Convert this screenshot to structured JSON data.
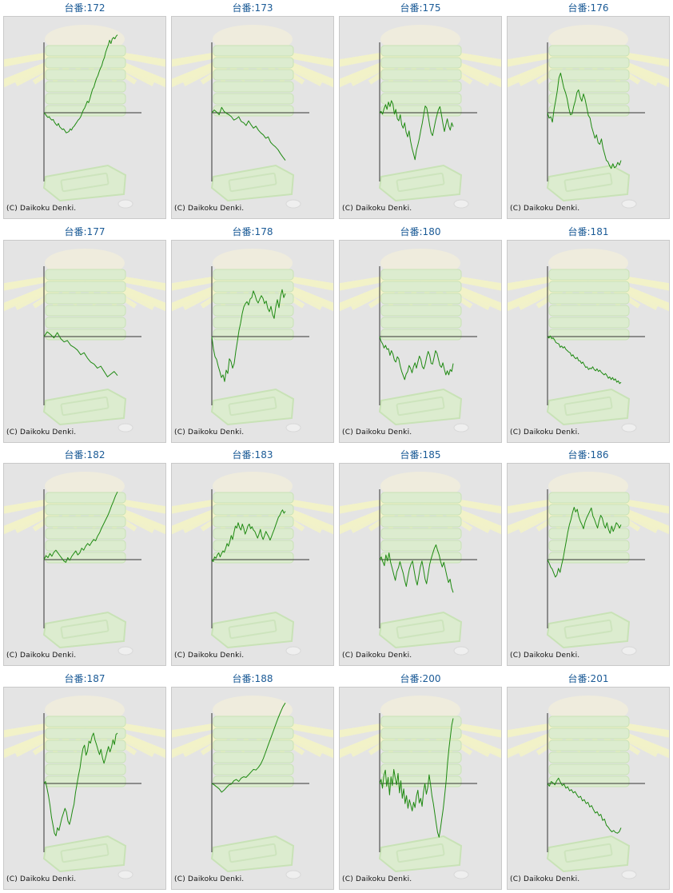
{
  "colors": {
    "title": "#1a5a96",
    "line": "#1f8a12",
    "axis": "#333333",
    "panel": "#e4e4e4"
  },
  "credit": "(C) Daikoku Denki.",
  "chart_data": [
    {
      "type": "line",
      "title": "台番:172",
      "values": [
        0,
        -2,
        -5,
        -7,
        -6,
        -9,
        -11,
        -10,
        -14,
        -17,
        -19,
        -16,
        -21,
        -23,
        -25,
        -24,
        -27,
        -30,
        -29,
        -28,
        -24,
        -26,
        -22,
        -20,
        -17,
        -14,
        -11,
        -9,
        -6,
        -1,
        4,
        7,
        12,
        17,
        15,
        21,
        28,
        35,
        38,
        45,
        51,
        55,
        61,
        66,
        70,
        77,
        82,
        90,
        96,
        101,
        108,
        103,
        110,
        112,
        110,
        114,
        116
      ]
    },
    {
      "type": "line",
      "title": "台番:173",
      "values": [
        0,
        4,
        1,
        -3,
        8,
        2,
        -1,
        -3,
        -6,
        -11,
        -9,
        -6,
        -13,
        -15,
        -19,
        -12,
        -18,
        -23,
        -20,
        -26,
        -30,
        -33,
        -38,
        -36,
        -44,
        -48,
        -51,
        -55,
        -61,
        -66,
        -71
      ]
    },
    {
      "type": "line",
      "title": "台番:175",
      "values": [
        0,
        2,
        -2,
        6,
        12,
        5,
        16,
        9,
        18,
        13,
        -2,
        5,
        -9,
        -12,
        -3,
        -18,
        -23,
        -15,
        -29,
        -36,
        -27,
        -42,
        -53,
        -61,
        -70,
        -56,
        -48,
        -38,
        -26,
        -15,
        -2,
        10,
        7,
        -5,
        -19,
        -30,
        -34,
        -23,
        -12,
        -3,
        5,
        9,
        -3,
        -16,
        -28,
        -18,
        -9,
        -20,
        -26,
        -15,
        -21
      ]
    },
    {
      "type": "line",
      "title": "台番:176",
      "values": [
        0,
        -8,
        -6,
        -14,
        5,
        18,
        33,
        52,
        59,
        48,
        37,
        30,
        21,
        7,
        -3,
        -2,
        9,
        18,
        30,
        34,
        23,
        17,
        28,
        20,
        8,
        -4,
        -8,
        -21,
        -29,
        -38,
        -33,
        -45,
        -47,
        -39,
        -53,
        -62,
        -71,
        -73,
        -79,
        -83,
        -76,
        -82,
        -80,
        -74,
        -78,
        -71
      ]
    },
    {
      "type": "line",
      "title": "台番:177",
      "values": [
        0,
        7,
        3,
        -2,
        6,
        -3,
        -8,
        -6,
        -13,
        -16,
        -20,
        -27,
        -24,
        -32,
        -38,
        -41,
        -47,
        -44,
        -52,
        -60,
        -56,
        -52,
        -58
      ]
    },
    {
      "type": "line",
      "title": "台番:178",
      "values": [
        0,
        -18,
        -30,
        -34,
        -44,
        -52,
        -61,
        -57,
        -67,
        -50,
        -55,
        -33,
        -37,
        -47,
        -40,
        -22,
        -7,
        9,
        20,
        34,
        44,
        49,
        52,
        47,
        56,
        58,
        68,
        62,
        54,
        50,
        56,
        61,
        57,
        49,
        53,
        42,
        37,
        45,
        33,
        27,
        44,
        55,
        43,
        60,
        70,
        58,
        64
      ]
    },
    {
      "type": "line",
      "title": "台番:180",
      "values": [
        0,
        -7,
        -11,
        -17,
        -13,
        -19,
        -18,
        -28,
        -21,
        -26,
        -35,
        -38,
        -30,
        -33,
        -44,
        -52,
        -58,
        -64,
        -56,
        -52,
        -43,
        -47,
        -54,
        -45,
        -39,
        -47,
        -38,
        -29,
        -34,
        -45,
        -48,
        -41,
        -30,
        -22,
        -28,
        -40,
        -41,
        -31,
        -21,
        -25,
        -34,
        -43,
        -46,
        -39,
        -49,
        -57,
        -51,
        -57,
        -49,
        -52,
        -40
      ]
    },
    {
      "type": "line",
      "title": "台番:181",
      "values": [
        0,
        -2,
        1,
        -3,
        -2,
        -5,
        -9,
        -10,
        -11,
        -16,
        -14,
        -17,
        -15,
        -19,
        -21,
        -23,
        -24,
        -29,
        -27,
        -31,
        -33,
        -31,
        -36,
        -36,
        -40,
        -38,
        -42,
        -46,
        -45,
        -49,
        -47,
        -48,
        -45,
        -49,
        -51,
        -48,
        -52,
        -50,
        -53,
        -55,
        -57,
        -55,
        -58,
        -62,
        -60,
        -64,
        -61,
        -65,
        -63,
        -68,
        -66,
        -70,
        -68
      ]
    },
    {
      "type": "line",
      "title": "台番:182",
      "values": [
        0,
        6,
        3,
        9,
        5,
        11,
        14,
        10,
        6,
        2,
        -2,
        -4,
        3,
        -1,
        5,
        9,
        13,
        7,
        10,
        17,
        14,
        20,
        24,
        21,
        26,
        30,
        28,
        35,
        40,
        47,
        53,
        59,
        65,
        72,
        80,
        87,
        95,
        101
      ]
    },
    {
      "type": "line",
      "title": "台番:183",
      "values": [
        0,
        -3,
        4,
        2,
        7,
        10,
        4,
        9,
        13,
        11,
        17,
        24,
        20,
        27,
        36,
        30,
        41,
        50,
        47,
        55,
        48,
        44,
        53,
        47,
        38,
        43,
        50,
        53,
        46,
        49,
        44,
        42,
        37,
        32,
        38,
        45,
        35,
        30,
        36,
        42,
        38,
        34,
        29,
        34,
        40,
        45,
        51,
        57,
        63,
        66,
        71,
        74,
        69,
        72
      ]
    },
    {
      "type": "line",
      "title": "台番:185",
      "values": [
        0,
        4,
        -3,
        -9,
        7,
        -2,
        10,
        -4,
        -13,
        -22,
        -31,
        -18,
        -12,
        -3,
        -12,
        -20,
        -31,
        -40,
        -26,
        -14,
        -7,
        -2,
        -16,
        -29,
        -38,
        -25,
        -11,
        -2,
        -14,
        -29,
        -36,
        -21,
        -7,
        2,
        10,
        17,
        22,
        14,
        7,
        -3,
        -11,
        -4,
        -14,
        -25,
        -34,
        -29,
        -42,
        -49
      ]
    },
    {
      "type": "line",
      "title": "台番:186",
      "values": [
        0,
        -5,
        -11,
        -14,
        -20,
        -26,
        -23,
        -13,
        -19,
        -8,
        2,
        15,
        28,
        41,
        52,
        60,
        70,
        78,
        71,
        75,
        64,
        57,
        52,
        46,
        56,
        62,
        67,
        72,
        77,
        65,
        60,
        53,
        47,
        58,
        66,
        62,
        52,
        47,
        55,
        45,
        39,
        50,
        42,
        48,
        55,
        52,
        47,
        52
      ]
    },
    {
      "type": "line",
      "title": "台番:187",
      "values": [
        0,
        3,
        -7,
        -18,
        -32,
        -50,
        -62,
        -74,
        -78,
        -66,
        -70,
        -60,
        -51,
        -44,
        -37,
        -43,
        -56,
        -61,
        -52,
        -40,
        -31,
        -14,
        -1,
        12,
        23,
        39,
        52,
        57,
        42,
        48,
        63,
        60,
        70,
        75,
        65,
        58,
        50,
        43,
        51,
        38,
        30,
        38,
        47,
        55,
        47,
        54,
        65,
        58,
        73,
        75
      ]
    },
    {
      "type": "line",
      "title": "台番:188",
      "values": [
        0,
        -2,
        -5,
        -8,
        -13,
        -10,
        -6,
        -2,
        -1,
        4,
        6,
        3,
        8,
        10,
        9,
        13,
        17,
        21,
        20,
        24,
        29,
        37,
        47,
        57,
        67,
        77,
        87,
        97,
        106,
        114,
        120
      ]
    },
    {
      "type": "line",
      "title": "台番:200",
      "values": [
        0,
        6,
        -7,
        12,
        20,
        -4,
        9,
        -17,
        10,
        -3,
        21,
        8,
        -2,
        15,
        -14,
        4,
        -22,
        -8,
        -30,
        -18,
        -37,
        -24,
        -32,
        -41,
        -28,
        -36,
        -19,
        -10,
        -29,
        -22,
        -34,
        -13,
        0,
        -16,
        -6,
        13,
        -2,
        -19,
        -30,
        -45,
        -60,
        -73,
        -80,
        -67,
        -52,
        -37,
        -17,
        4,
        30,
        52,
        70,
        87,
        97
      ]
    },
    {
      "type": "line",
      "title": "台番:201",
      "values": [
        0,
        -4,
        3,
        1,
        -2,
        4,
        8,
        2,
        -3,
        -1,
        -7,
        -5,
        -11,
        -9,
        -14,
        -12,
        -17,
        -21,
        -19,
        -26,
        -24,
        -30,
        -28,
        -35,
        -33,
        -39,
        -44,
        -42,
        -48,
        -46,
        -55,
        -53,
        -62,
        -65,
        -69,
        -72,
        -70,
        -73,
        -74,
        -72,
        -66
      ]
    }
  ]
}
